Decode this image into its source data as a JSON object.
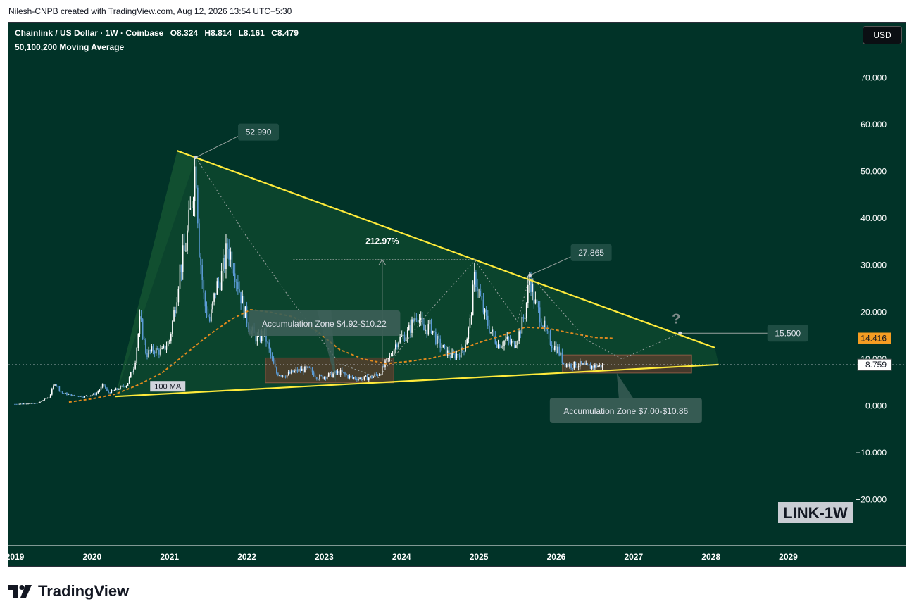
{
  "attribution": "Nilesh-CNPB created with TradingView.com, Aug 12, 2026 13:54 UTC+5:30",
  "header": {
    "symbol": "Chainlink / US Dollar · 1W · Coinbase",
    "open": "O8.324",
    "high": "H8.814",
    "low": "L8.161",
    "close": "C8.479",
    "indicator": "50,100,200 Moving Average"
  },
  "currency_button": "USD",
  "brand": "TradingView",
  "colors": {
    "background": "#013328",
    "trendline": "#ffeb3b",
    "ma": "#e08a1e",
    "up_candle": "#ffffff",
    "down_candle": "#5b9bd5",
    "zone": "#6a3d2c",
    "price_tag": "#f59d22"
  },
  "chart_data": {
    "type": "candlestick",
    "y_axis": {
      "min": -30,
      "max": 80,
      "ticks": [
        "70.000",
        "60.000",
        "50.000",
        "40.000",
        "30.000",
        "20.000",
        "10.000",
        "0.000",
        "−10.000",
        "−20.000"
      ],
      "tick_values": [
        70,
        60,
        50,
        40,
        30,
        20,
        10,
        0,
        -10,
        -20
      ]
    },
    "x_axis": {
      "ticks": [
        "2019",
        "2020",
        "2021",
        "2022",
        "2023",
        "2024",
        "2025",
        "2026",
        "2027",
        "2028",
        "2029"
      ],
      "tick_values": [
        2019,
        2020,
        2021,
        2022,
        2023,
        2024,
        2025,
        2026,
        2027,
        2028,
        2029
      ]
    },
    "price_path": [
      [
        2019.0,
        0.4
      ],
      [
        2019.3,
        0.6
      ],
      [
        2019.45,
        2.0
      ],
      [
        2019.52,
        5.0
      ],
      [
        2019.6,
        2.8
      ],
      [
        2019.75,
        2.2
      ],
      [
        2019.9,
        2.0
      ],
      [
        2020.05,
        2.6
      ],
      [
        2020.15,
        4.5
      ],
      [
        2020.2,
        2.8
      ],
      [
        2020.3,
        3.4
      ],
      [
        2020.45,
        4.5
      ],
      [
        2020.55,
        9.0
      ],
      [
        2020.62,
        18.5
      ],
      [
        2020.7,
        11.0
      ],
      [
        2020.8,
        12.0
      ],
      [
        2020.9,
        11.5
      ],
      [
        2021.0,
        14.0
      ],
      [
        2021.08,
        22.0
      ],
      [
        2021.13,
        29.0
      ],
      [
        2021.2,
        33.0
      ],
      [
        2021.27,
        41.0
      ],
      [
        2021.34,
        52.99
      ],
      [
        2021.38,
        35.0
      ],
      [
        2021.45,
        22.0
      ],
      [
        2021.52,
        18.0
      ],
      [
        2021.6,
        25.0
      ],
      [
        2021.68,
        28.0
      ],
      [
        2021.75,
        34.0
      ],
      [
        2021.82,
        31.0
      ],
      [
        2021.9,
        25.0
      ],
      [
        2021.97,
        20.0
      ],
      [
        2022.05,
        16.0
      ],
      [
        2022.15,
        14.0
      ],
      [
        2022.22,
        16.0
      ],
      [
        2022.3,
        11.0
      ],
      [
        2022.38,
        7.0
      ],
      [
        2022.5,
        6.5
      ],
      [
        2022.65,
        7.5
      ],
      [
        2022.8,
        7.8
      ],
      [
        2022.92,
        6.0
      ],
      [
        2023.05,
        6.5
      ],
      [
        2023.2,
        7.2
      ],
      [
        2023.35,
        6.0
      ],
      [
        2023.5,
        5.8
      ],
      [
        2023.62,
        6.2
      ],
      [
        2023.72,
        7.0
      ],
      [
        2023.85,
        10.5
      ],
      [
        2023.95,
        14.0
      ],
      [
        2024.08,
        15.5
      ],
      [
        2024.15,
        18.0
      ],
      [
        2024.2,
        20.0
      ],
      [
        2024.28,
        16.0
      ],
      [
        2024.38,
        17.0
      ],
      [
        2024.45,
        14.0
      ],
      [
        2024.55,
        12.0
      ],
      [
        2024.65,
        10.5
      ],
      [
        2024.72,
        11.0
      ],
      [
        2024.8,
        12.0
      ],
      [
        2024.88,
        17.0
      ],
      [
        2024.95,
        28.0
      ],
      [
        2025.0,
        24.0
      ],
      [
        2025.08,
        19.0
      ],
      [
        2025.15,
        16.0
      ],
      [
        2025.25,
        13.0
      ],
      [
        2025.35,
        14.0
      ],
      [
        2025.45,
        13.0
      ],
      [
        2025.52,
        15.5
      ],
      [
        2025.6,
        20.0
      ],
      [
        2025.66,
        27.865
      ],
      [
        2025.72,
        22.0
      ],
      [
        2025.8,
        19.0
      ],
      [
        2025.88,
        15.0
      ],
      [
        2025.95,
        13.0
      ],
      [
        2026.02,
        12.0
      ],
      [
        2026.1,
        9.0
      ],
      [
        2026.2,
        8.6
      ],
      [
        2026.3,
        8.8
      ],
      [
        2026.4,
        8.2
      ],
      [
        2026.5,
        8.5
      ],
      [
        2026.6,
        8.479
      ]
    ],
    "moving_average": {
      "label": "100 MA",
      "points": [
        [
          2019.7,
          0.8
        ],
        [
          2020.0,
          1.5
        ],
        [
          2020.3,
          2.5
        ],
        [
          2020.6,
          4.5
        ],
        [
          2020.9,
          7.0
        ],
        [
          2021.2,
          11.0
        ],
        [
          2021.5,
          15.0
        ],
        [
          2021.8,
          18.5
        ],
        [
          2022.05,
          20.5
        ],
        [
          2022.3,
          20.0
        ],
        [
          2022.6,
          19.0
        ],
        [
          2022.9,
          16.0
        ],
        [
          2023.2,
          12.0
        ],
        [
          2023.5,
          10.0
        ],
        [
          2023.8,
          9.0
        ],
        [
          2024.1,
          9.5
        ],
        [
          2024.4,
          10.2
        ],
        [
          2024.7,
          11.5
        ],
        [
          2025.0,
          13.5
        ],
        [
          2025.3,
          15.0
        ],
        [
          2025.6,
          16.8
        ],
        [
          2025.9,
          16.5
        ],
        [
          2026.2,
          15.5
        ],
        [
          2026.5,
          14.6
        ],
        [
          2026.75,
          14.4
        ]
      ]
    },
    "trendlines": [
      {
        "from": [
          2021.1,
          54.4
        ],
        "to": [
          2028.05,
          12.4
        ]
      },
      {
        "from": [
          2020.3,
          2.0
        ],
        "to": [
          2028.1,
          8.8
        ]
      }
    ],
    "zones": [
      {
        "label": "Accumulation Zone $4.92-$10.22",
        "x0": 2022.24,
        "x1": 2023.9,
        "y0": 4.92,
        "y1": 10.22
      },
      {
        "label": "Accumulation Zone $7.00-$10.86",
        "x0": 2026.08,
        "x1": 2027.75,
        "y0": 7.0,
        "y1": 10.86
      }
    ],
    "annotations": [
      {
        "text": "52.990",
        "x": 2021.34,
        "y": 52.99
      },
      {
        "text": "27.865",
        "x": 2025.66,
        "y": 27.865
      },
      {
        "text": "212.97%",
        "x": 2023.75,
        "y": 31.2
      },
      {
        "text": "15.500",
        "x": 2027.6,
        "y": 15.5
      },
      {
        "text": "?",
        "x": 2027.55,
        "y": 18.5
      },
      {
        "text": "LINK-1W",
        "x": 2028.5,
        "y": -22.5
      }
    ],
    "price_tags": [
      {
        "text": "14.416",
        "value": 14.416
      },
      {
        "text": "8.759",
        "value": 8.759
      }
    ]
  }
}
